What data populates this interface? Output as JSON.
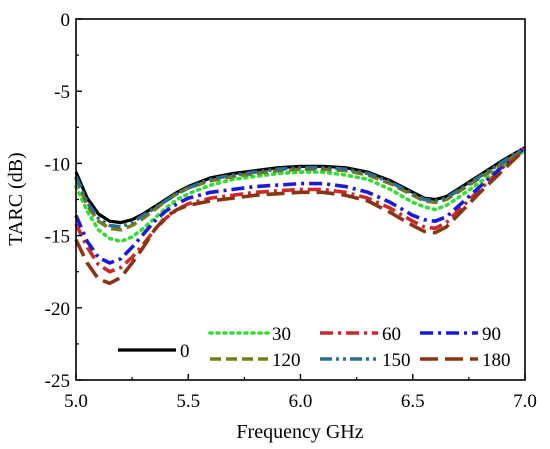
{
  "chart_data": {
    "type": "line",
    "xlabel": "Frequency GHz",
    "ylabel": "TARC (dB)",
    "xlim": [
      5.0,
      7.0
    ],
    "ylim": [
      -25,
      0
    ],
    "xticks": [
      5.0,
      5.5,
      6.0,
      6.5,
      7.0
    ],
    "xtick_labels": [
      "5.0",
      "5.5",
      "6.0",
      "6.5",
      "7.0"
    ],
    "yticks": [
      0,
      -5,
      -10,
      -15,
      -20,
      -25
    ],
    "ytick_labels": [
      "0",
      "-5",
      "-10",
      "-15",
      "-20",
      "-25"
    ],
    "grid": false,
    "legend": "bottom",
    "x": [
      5.0,
      5.05,
      5.1,
      5.15,
      5.2,
      5.25,
      5.3,
      5.35,
      5.4,
      5.45,
      5.5,
      5.6,
      5.7,
      5.8,
      5.9,
      6.0,
      6.1,
      6.2,
      6.3,
      6.4,
      6.5,
      6.55,
      6.6,
      6.65,
      6.7,
      6.8,
      6.9,
      7.0
    ],
    "series": [
      {
        "name": "0",
        "color": "#000000",
        "dash": "solid",
        "values": [
          -10.6,
          -12.4,
          -13.5,
          -14.0,
          -14.1,
          -13.9,
          -13.5,
          -13.0,
          -12.5,
          -12.0,
          -11.6,
          -11.0,
          -10.7,
          -10.5,
          -10.3,
          -10.2,
          -10.2,
          -10.3,
          -10.6,
          -11.2,
          -12.0,
          -12.4,
          -12.5,
          -12.3,
          -11.8,
          -10.8,
          -9.8,
          -8.9
        ]
      },
      {
        "name": "30",
        "color": "#33dd33",
        "dash": "dot",
        "values": [
          -11.6,
          -13.3,
          -14.6,
          -15.2,
          -15.4,
          -15.1,
          -14.5,
          -13.8,
          -13.1,
          -12.5,
          -12.1,
          -11.5,
          -11.1,
          -10.9,
          -10.7,
          -10.6,
          -10.6,
          -10.8,
          -11.1,
          -11.8,
          -12.7,
          -13.0,
          -13.2,
          -12.9,
          -12.4,
          -11.3,
          -10.2,
          -9.1
        ]
      },
      {
        "name": "60",
        "color": "#cc2a2a",
        "dash": "dashdot",
        "values": [
          -14.2,
          -15.8,
          -17.0,
          -17.5,
          -17.2,
          -16.5,
          -15.6,
          -14.6,
          -13.8,
          -13.2,
          -12.8,
          -12.4,
          -12.2,
          -12.0,
          -11.9,
          -11.8,
          -11.8,
          -12.0,
          -12.4,
          -13.1,
          -14.0,
          -14.4,
          -14.5,
          -14.1,
          -13.3,
          -11.8,
          -10.3,
          -8.9
        ]
      },
      {
        "name": "90",
        "color": "#1a1adb",
        "dash": "dashdot",
        "values": [
          -13.6,
          -15.4,
          -16.5,
          -16.9,
          -16.6,
          -15.8,
          -14.9,
          -14.0,
          -13.3,
          -12.8,
          -12.4,
          -12.0,
          -11.8,
          -11.6,
          -11.5,
          -11.4,
          -11.4,
          -11.6,
          -12.0,
          -12.7,
          -13.6,
          -13.9,
          -14.0,
          -13.7,
          -13.0,
          -11.6,
          -10.2,
          -8.9
        ]
      },
      {
        "name": "120",
        "color": "#7b7a14",
        "dash": "dash",
        "values": [
          -11.0,
          -12.9,
          -14.0,
          -14.5,
          -14.6,
          -14.3,
          -13.8,
          -13.2,
          -12.6,
          -12.1,
          -11.7,
          -11.2,
          -10.9,
          -10.7,
          -10.5,
          -10.4,
          -10.4,
          -10.5,
          -10.8,
          -11.4,
          -12.2,
          -12.6,
          -12.7,
          -12.5,
          -12.0,
          -11.0,
          -10.0,
          -9.0
        ]
      },
      {
        "name": "150",
        "color": "#2e6e8e",
        "dash": "dashdotdot",
        "values": [
          -10.9,
          -12.7,
          -13.8,
          -14.3,
          -14.4,
          -14.1,
          -13.6,
          -13.1,
          -12.6,
          -12.1,
          -11.7,
          -11.1,
          -10.8,
          -10.6,
          -10.4,
          -10.3,
          -10.3,
          -10.4,
          -10.7,
          -11.3,
          -12.1,
          -12.5,
          -12.6,
          -12.4,
          -11.9,
          -10.9,
          -9.9,
          -8.9
        ]
      },
      {
        "name": "180",
        "color": "#8a3414",
        "dash": "longdash",
        "values": [
          -15.3,
          -16.9,
          -18.0,
          -18.3,
          -17.9,
          -16.9,
          -15.8,
          -14.6,
          -13.7,
          -13.2,
          -12.9,
          -12.6,
          -12.4,
          -12.2,
          -12.1,
          -12.0,
          -12.0,
          -12.2,
          -12.6,
          -13.4,
          -14.3,
          -14.7,
          -14.8,
          -14.4,
          -13.6,
          -12.0,
          -10.5,
          -9.0
        ]
      }
    ]
  }
}
